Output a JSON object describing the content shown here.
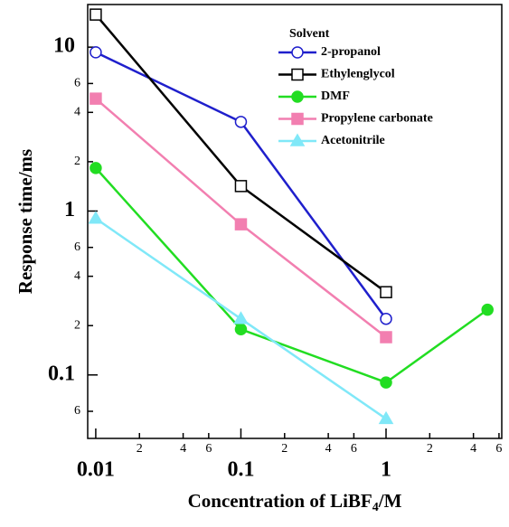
{
  "chart_data": {
    "type": "line",
    "x_label": {
      "text": "Concentration of LiBF",
      "sub": "4",
      "after": "/M"
    },
    "y_label": "Response time/ms",
    "log_x": true,
    "log_y": true,
    "xlim": [
      0.0088,
      6.27
    ],
    "ylim": [
      0.041,
      18.2
    ],
    "xticks": [
      0.01,
      {
        "value": 0.02,
        "label": "2"
      },
      {
        "value": 0.04,
        "label": "4"
      },
      {
        "value": 0.06,
        "label": "6"
      },
      0.1,
      {
        "value": 0.2,
        "label": "2"
      },
      {
        "value": 0.4,
        "label": "4"
      },
      {
        "value": 0.6,
        "label": "6"
      },
      1,
      {
        "value": 2,
        "label": "2"
      },
      {
        "value": 4,
        "label": "4"
      },
      {
        "value": 6,
        "label": "6"
      }
    ],
    "yticks": [
      {
        "value": 0.06,
        "label": "6"
      },
      0.1,
      {
        "value": 0.2,
        "label": "2"
      },
      {
        "value": 0.4,
        "label": "4"
      },
      {
        "value": 0.6,
        "label": "6"
      },
      1,
      {
        "value": 2,
        "label": "2"
      },
      {
        "value": 4,
        "label": "4"
      },
      {
        "value": 6,
        "label": "6"
      },
      10
    ],
    "legend_title": "Solvent",
    "legend_position": "upper-right",
    "series": [
      {
        "name": "2-propanol",
        "color": "#1f1fcc",
        "marker": "open-circle",
        "x": [
          0.01,
          0.1,
          1
        ],
        "values": [
          9.3,
          3.5,
          0.22
        ]
      },
      {
        "name": "Ethylenglycol",
        "color": "#000000",
        "marker": "open-square",
        "x": [
          0.01,
          0.1,
          1
        ],
        "values": [
          15.8,
          1.42,
          0.32
        ]
      },
      {
        "name": "DMF",
        "color": "#22dd22",
        "marker": "circle",
        "x": [
          0.01,
          0.1,
          1,
          5
        ],
        "values": [
          1.83,
          0.19,
          0.09,
          0.25
        ]
      },
      {
        "name": "Propylene carbonate",
        "color": "#f27fb0",
        "marker": "square",
        "x": [
          0.01,
          0.1,
          1
        ],
        "values": [
          4.85,
          0.83,
          0.17
        ]
      },
      {
        "name": "Acetonitrile",
        "color": "#80e8f8",
        "marker": "triangle",
        "x": [
          0.01,
          0.1,
          1
        ],
        "values": [
          0.9,
          0.22,
          0.054
        ]
      }
    ]
  }
}
